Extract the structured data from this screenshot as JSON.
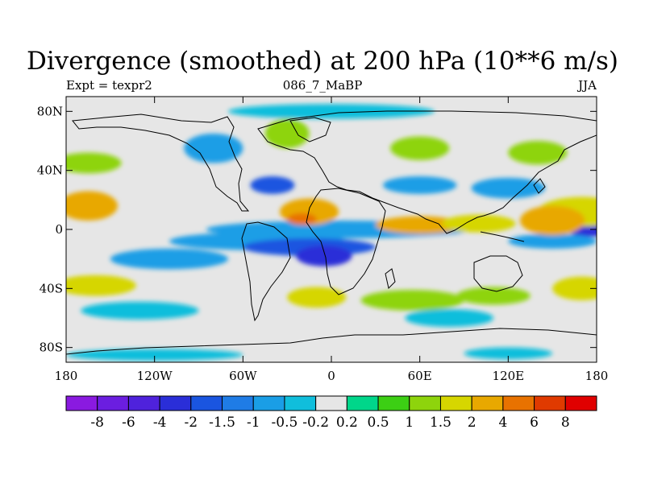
{
  "title": "Divergence (smoothed) at 200 hPa (10**6 m/s)",
  "left_string": "Expt = texpr2",
  "center_string": "086_7_MaBP",
  "right_string": "JJA",
  "chart_data": {
    "type": "heatmap",
    "plot_style": "filled contour map, cylindrical equidistant",
    "variable": "Divergence (smoothed) at 200 hPa",
    "units": "10**6 m/s",
    "x_range": [
      -180,
      180
    ],
    "y_range": [
      -90,
      90
    ],
    "x_ticks": [
      {
        "value": -180,
        "label": "180"
      },
      {
        "value": -120,
        "label": "120W"
      },
      {
        "value": -60,
        "label": "60W"
      },
      {
        "value": 0,
        "label": "0"
      },
      {
        "value": 60,
        "label": "60E"
      },
      {
        "value": 120,
        "label": "120E"
      },
      {
        "value": 180,
        "label": "180"
      }
    ],
    "y_ticks": [
      {
        "value": 80,
        "label": "80N"
      },
      {
        "value": 40,
        "label": "40N"
      },
      {
        "value": 0,
        "label": "0"
      },
      {
        "value": -40,
        "label": "40S"
      },
      {
        "value": -80,
        "label": "80S"
      }
    ],
    "contour_levels": [
      {
        "label": "-8",
        "value": -8
      },
      {
        "label": "-6",
        "value": -6
      },
      {
        "label": "-4",
        "value": -4
      },
      {
        "label": "-2",
        "value": -2
      },
      {
        "label": "-1.5",
        "value": -1.5
      },
      {
        "label": "-1",
        "value": -1
      },
      {
        "label": "-0.5",
        "value": -0.5
      },
      {
        "label": "-0.2",
        "value": -0.2
      },
      {
        "label": "0.2",
        "value": 0.2
      },
      {
        "label": "0.5",
        "value": 0.5
      },
      {
        "label": "1",
        "value": 1
      },
      {
        "label": "1.5",
        "value": 1.5
      },
      {
        "label": "2",
        "value": 2
      },
      {
        "label": "4",
        "value": 4
      },
      {
        "label": "6",
        "value": 6
      },
      {
        "label": "8",
        "value": 8
      }
    ],
    "colors": [
      "#8a1ae0",
      "#6b1ee0",
      "#4f22dc",
      "#2a2ed8",
      "#1a55e0",
      "#1f7ce6",
      "#1a9ee6",
      "#10bedc",
      "#e6e6e6",
      "#00d68a",
      "#3ccf14",
      "#8ed40c",
      "#d6d600",
      "#e8a800",
      "#e87200",
      "#e03a00",
      "#e00000"
    ],
    "features": [
      {
        "lon": 175,
        "lat": 0,
        "width": 30,
        "height": 5,
        "value": -4
      },
      {
        "lon": 5,
        "lat": 0,
        "width": 180,
        "height": 6,
        "value": -1
      },
      {
        "lon": -50,
        "lat": -8,
        "width": 120,
        "height": 6,
        "value": -1
      },
      {
        "lon": -15,
        "lat": -12,
        "width": 90,
        "height": 6,
        "value": -2
      },
      {
        "lon": -5,
        "lat": -18,
        "width": 38,
        "height": 7,
        "value": -4
      },
      {
        "lon": -110,
        "lat": -20,
        "width": 80,
        "height": 7,
        "value": -1
      },
      {
        "lon": 150,
        "lat": -8,
        "width": 60,
        "height": 5,
        "value": -1
      },
      {
        "lon": 170,
        "lat": 12,
        "width": 60,
        "height": 10,
        "value": 1.5
      },
      {
        "lon": -165,
        "lat": 16,
        "width": 40,
        "height": 10,
        "value": 2
      },
      {
        "lon": -15,
        "lat": 12,
        "width": 40,
        "height": 9,
        "value": 2
      },
      {
        "lon": -20,
        "lat": 7,
        "width": 20,
        "height": 4,
        "value": 4
      },
      {
        "lon": 60,
        "lat": 3,
        "width": 60,
        "height": 6,
        "value": 2
      },
      {
        "lon": 100,
        "lat": 4,
        "width": 50,
        "height": 6,
        "value": 1.5
      },
      {
        "lon": 150,
        "lat": 6,
        "width": 44,
        "height": 10,
        "value": 2
      },
      {
        "lon": -160,
        "lat": -38,
        "width": 55,
        "height": 7,
        "value": 1.5
      },
      {
        "lon": 170,
        "lat": -40,
        "width": 40,
        "height": 8,
        "value": 1.5
      },
      {
        "lon": -10,
        "lat": -46,
        "width": 40,
        "height": 7,
        "value": 1.5
      },
      {
        "lon": 55,
        "lat": -48,
        "width": 70,
        "height": 7,
        "value": 1
      },
      {
        "lon": 110,
        "lat": -45,
        "width": 50,
        "height": 6,
        "value": 1
      },
      {
        "lon": -165,
        "lat": 45,
        "width": 45,
        "height": 7,
        "value": 1
      },
      {
        "lon": -80,
        "lat": 55,
        "width": 40,
        "height": 10,
        "value": -1
      },
      {
        "lon": -30,
        "lat": 65,
        "width": 30,
        "height": 10,
        "value": 1
      },
      {
        "lon": 60,
        "lat": 55,
        "width": 40,
        "height": 8,
        "value": 1
      },
      {
        "lon": 140,
        "lat": 52,
        "width": 40,
        "height": 8,
        "value": 1
      },
      {
        "lon": -40,
        "lat": 30,
        "width": 30,
        "height": 6,
        "value": -2
      },
      {
        "lon": 60,
        "lat": 30,
        "width": 50,
        "height": 6,
        "value": -1
      },
      {
        "lon": 120,
        "lat": 28,
        "width": 50,
        "height": 7,
        "value": -1
      },
      {
        "lon": 0,
        "lat": 80,
        "width": 140,
        "height": 5,
        "value": -0.5
      },
      {
        "lon": -120,
        "lat": -85,
        "width": 120,
        "height": 4,
        "value": -0.5
      },
      {
        "lon": 120,
        "lat": -84,
        "width": 60,
        "height": 4,
        "value": -0.5
      },
      {
        "lon": -130,
        "lat": -55,
        "width": 80,
        "height": 6,
        "value": -0.5
      },
      {
        "lon": 80,
        "lat": -60,
        "width": 60,
        "height": 6,
        "value": -0.5
      }
    ]
  }
}
